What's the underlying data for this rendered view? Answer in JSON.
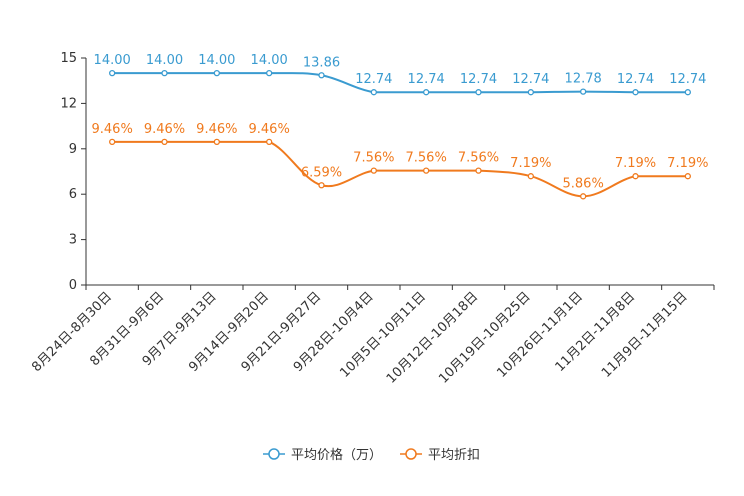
{
  "chart_data": {
    "type": "line",
    "title": "",
    "xlabel": "",
    "ylabel": "",
    "ylim": [
      0,
      15
    ],
    "yticks": [
      0,
      3,
      6,
      9,
      12,
      15
    ],
    "grid": false,
    "legend_position": "bottom-center",
    "categories": [
      "8月24日-8月30日",
      "8月31日-9月6日",
      "9月7日-9月13日",
      "9月14日-9月20日",
      "9月21日-9月27日",
      "9月28日-10月4日",
      "10月5日-10月11日",
      "10月12日-10月18日",
      "10月19日-10月25日",
      "10月26日-11月1日",
      "11月2日-11月8日",
      "11月9日-11月15日"
    ],
    "series": [
      {
        "name": "平均价格（万）",
        "color": "#3a9bd0",
        "values": [
          14.0,
          14.0,
          14.0,
          14.0,
          13.86,
          12.74,
          12.74,
          12.74,
          12.74,
          12.78,
          12.74,
          12.74
        ],
        "labels": [
          "14.00",
          "14.00",
          "14.00",
          "14.00",
          "13.86",
          "12.74",
          "12.74",
          "12.74",
          "12.74",
          "12.78",
          "12.74",
          "12.74"
        ]
      },
      {
        "name": "平均折扣",
        "color": "#f07a1e",
        "values": [
          9.46,
          9.46,
          9.46,
          9.46,
          6.59,
          7.56,
          7.56,
          7.56,
          7.19,
          5.86,
          7.19,
          7.19
        ],
        "labels": [
          "9.46%",
          "9.46%",
          "9.46%",
          "9.46%",
          "6.59%",
          "7.56%",
          "7.56%",
          "7.56%",
          "7.19%",
          "5.86%",
          "7.19%",
          "7.19%"
        ]
      }
    ]
  }
}
